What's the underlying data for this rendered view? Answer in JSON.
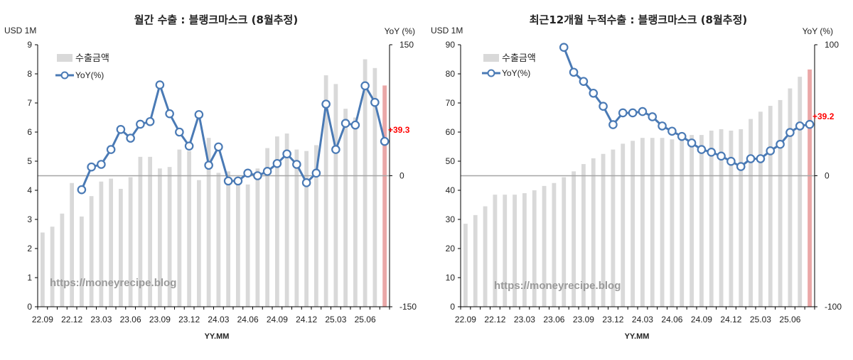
{
  "chart_data": [
    {
      "type": "bar",
      "title": "월간 수출 : 블랭크마스크 (8월추정)",
      "y_unit_left": "USD 1M",
      "y_unit_right": "YoY (%)",
      "xlabel": "YY.MM",
      "ylim_left": [
        0,
        9
      ],
      "yticks_left": [
        "0",
        "1",
        "2",
        "3",
        "4",
        "5",
        "6",
        "7",
        "8",
        "9"
      ],
      "ylim_right": [
        -150,
        150
      ],
      "yticks_right": [
        "-150",
        "0",
        "150"
      ],
      "x_tick_labels": [
        "22.09",
        "22.12",
        "23.03",
        "23.06",
        "23.09",
        "23.12",
        "24.03",
        "24.06",
        "24.09",
        "24.12",
        "25.03",
        "25.06"
      ],
      "legend": [
        "수출금액",
        "YoY(%)"
      ],
      "watermark": "https://moneyrecipe.blog",
      "end_label": "+39.3",
      "colors": {
        "bar": "#d9d9d9",
        "bar_last": "#eaa7a7",
        "line": "#4a7ab5",
        "zero_line": "#a6a6a6",
        "end_label": "#ff0000"
      },
      "bar_values": [
        2.55,
        2.75,
        3.2,
        4.25,
        3.1,
        3.8,
        4.3,
        4.4,
        4.05,
        4.45,
        5.15,
        5.15,
        4.75,
        4.8,
        5.4,
        5.35,
        4.35,
        5.8,
        4.6,
        4.65,
        4.3,
        4.2,
        4.75,
        5.45,
        5.85,
        5.95,
        5.4,
        5.35,
        5.55,
        7.95,
        7.65,
        6.8,
        6.5,
        8.5,
        8.2,
        7.6
      ],
      "yoy_start_index": 4,
      "yoy_values": [
        -16,
        10,
        13,
        30,
        53,
        43,
        59,
        62,
        104,
        71,
        50,
        34,
        70,
        12,
        33,
        -6,
        -6,
        3,
        0,
        5,
        14,
        25,
        13,
        -8,
        3,
        82,
        30,
        60,
        58,
        103,
        84,
        39.3
      ]
    },
    {
      "type": "bar",
      "title": "최근12개월 누적수출 : 블랭크마스크 (8월추정)",
      "y_unit_left": "USD 1M",
      "y_unit_right": "YoY (%)",
      "xlabel": "YY.MM",
      "ylim_left": [
        0,
        90
      ],
      "yticks_left": [
        "0",
        "10",
        "20",
        "30",
        "40",
        "50",
        "60",
        "70",
        "80",
        "90"
      ],
      "ylim_right": [
        -100,
        100
      ],
      "yticks_right": [
        "-100",
        "0",
        "100"
      ],
      "x_tick_labels": [
        "22.09",
        "22.12",
        "23.03",
        "23.06",
        "23.09",
        "23.12",
        "24.03",
        "24.06",
        "24.09",
        "24.12",
        "25.03",
        "25.06"
      ],
      "legend": [
        "수출금액",
        "YoY(%)"
      ],
      "watermark": "https://moneyrecipe.blog",
      "end_label": "+39.2",
      "colors": {
        "bar": "#d9d9d9",
        "bar_last": "#eaa7a7",
        "line": "#4a7ab5",
        "zero_line": "#a6a6a6",
        "end_label": "#ff0000"
      },
      "bar_values": [
        28.5,
        31.5,
        34.5,
        38.5,
        38.5,
        38.5,
        39,
        40,
        41.5,
        42.5,
        44.5,
        46.5,
        49,
        51,
        52.5,
        54,
        56,
        57,
        58,
        58,
        58,
        57.5,
        58,
        59,
        59,
        60.5,
        61,
        60.5,
        61,
        64.5,
        67,
        69,
        71,
        75,
        79,
        81.5
      ],
      "yoy_start_index": 10,
      "yoy_values": [
        98,
        79,
        72,
        63,
        53,
        39,
        48,
        48,
        49,
        45,
        38,
        34,
        30,
        25,
        20,
        18,
        15,
        11,
        7,
        13,
        13,
        19,
        24,
        33,
        38,
        39.2
      ]
    }
  ]
}
